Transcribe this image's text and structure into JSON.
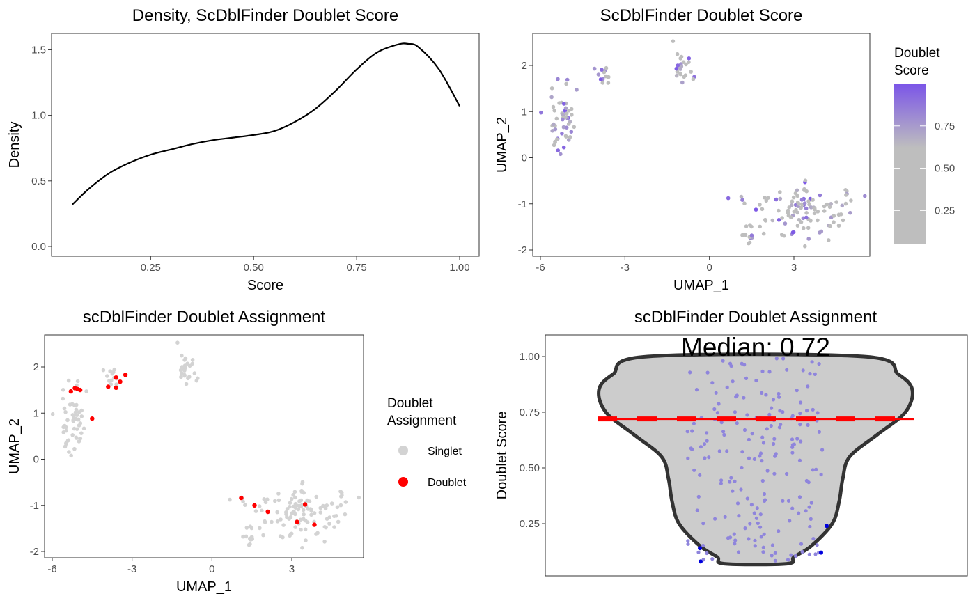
{
  "colors": {
    "score_low": "#bebebe",
    "score_high": "#7b55e8",
    "singlet": "#d3d3d3",
    "doublet": "#ff0000",
    "violin_fill": "#cccccc",
    "violin_outline": "#333333",
    "jitter_point": "#8f85dc",
    "outlier_point": "#0000dd",
    "median_line": "#ff0000"
  },
  "chart_data": [
    {
      "id": "density",
      "type": "line",
      "title": "Density, ScDblFinder Doublet Score",
      "xlabel": "Score",
      "ylabel": "Density",
      "xlim": [
        0.05,
        1.0
      ],
      "ylim": [
        0.0,
        1.55
      ],
      "xticks": [
        0.25,
        0.5,
        0.75,
        1.0
      ],
      "xtick_labels": [
        "0.25",
        "0.50",
        "0.75",
        "1.00"
      ],
      "yticks": [
        0.0,
        0.5,
        1.0,
        1.5
      ],
      "ytick_labels": [
        "0.0",
        "0.5",
        "1.0",
        "1.5"
      ],
      "grid": false,
      "series": [
        {
          "x": [
            0.06,
            0.1,
            0.15,
            0.2,
            0.25,
            0.3,
            0.35,
            0.4,
            0.45,
            0.5,
            0.55,
            0.6,
            0.65,
            0.7,
            0.75,
            0.8,
            0.85,
            0.875,
            0.9,
            0.95,
            1.0
          ],
          "y": [
            0.32,
            0.44,
            0.56,
            0.64,
            0.7,
            0.74,
            0.78,
            0.81,
            0.83,
            0.85,
            0.88,
            0.95,
            1.05,
            1.19,
            1.35,
            1.48,
            1.54,
            1.545,
            1.52,
            1.35,
            1.07
          ]
        }
      ]
    },
    {
      "id": "umap_score",
      "type": "scatter",
      "title": "ScDblFinder Doublet Score",
      "xlabel": "UMAP_1",
      "ylabel": "UMAP_2",
      "xlim": [
        -5.9,
        5.7
      ],
      "ylim": [
        -2.1,
        2.55
      ],
      "xticks": [
        -6,
        -3,
        0,
        3
      ],
      "xtick_labels": [
        "-6",
        "-3",
        "0",
        "3"
      ],
      "yticks": [
        -2,
        -1,
        0,
        1,
        2
      ],
      "ytick_labels": [
        "-2",
        "-1",
        "0",
        "1",
        "2"
      ],
      "legend": {
        "title": "Doublet\nScore",
        "position": "right",
        "type": "colorbar",
        "range": [
          0.05,
          1.0
        ],
        "ticks": [
          0.25,
          0.5,
          0.75
        ],
        "tick_labels": [
          "0.25",
          "0.50",
          "0.75"
        ]
      },
      "clusters": [
        {
          "center": [
            -5.2,
            0.8
          ],
          "spread": [
            0.42,
            0.45
          ],
          "n": 52
        },
        {
          "center": [
            -3.8,
            1.75
          ],
          "spread": [
            0.22,
            0.12
          ],
          "n": 12
        },
        {
          "center": [
            -1.0,
            1.95
          ],
          "spread": [
            0.22,
            0.25
          ],
          "n": 24
        },
        {
          "center": [
            3.3,
            -1.15
          ],
          "spread": [
            1.3,
            0.35
          ],
          "n": 110
        },
        {
          "center": [
            1.35,
            -1.7
          ],
          "spread": [
            0.18,
            0.15
          ],
          "n": 12
        }
      ]
    },
    {
      "id": "umap_assign",
      "type": "scatter",
      "title": "scDblFinder Doublet Assignment",
      "xlabel": "UMAP_1",
      "ylabel": "UMAP_2",
      "xlim": [
        -5.9,
        5.4
      ],
      "ylim": [
        -2.1,
        2.55
      ],
      "xticks": [
        -6,
        -3,
        0,
        3
      ],
      "xtick_labels": [
        "-6",
        "-3",
        "0",
        "3"
      ],
      "yticks": [
        -2,
        -1,
        0,
        1,
        2
      ],
      "ytick_labels": [
        "-2",
        "-1",
        "0",
        "1",
        "2"
      ],
      "legend": {
        "title": "Doublet\nAssignment",
        "position": "right",
        "type": "categorical",
        "items": [
          {
            "label": "Singlet",
            "color": "#d3d3d3"
          },
          {
            "label": "Doublet",
            "color": "#ff0000"
          }
        ]
      },
      "doublets": [
        [
          -5.3,
          1.47
        ],
        [
          -5.15,
          1.54
        ],
        [
          -5.05,
          1.52
        ],
        [
          -4.95,
          1.5
        ],
        [
          -4.5,
          0.88
        ],
        [
          -3.9,
          1.57
        ],
        [
          -3.6,
          1.55
        ],
        [
          -3.6,
          1.77
        ],
        [
          -3.45,
          1.68
        ],
        [
          -3.25,
          1.83
        ],
        [
          1.1,
          -0.84
        ],
        [
          1.6,
          -1.0
        ],
        [
          2.1,
          -1.14
        ],
        [
          3.2,
          -1.36
        ],
        [
          3.5,
          -0.98
        ],
        [
          3.85,
          -1.42
        ]
      ]
    },
    {
      "id": "violin",
      "type": "violin",
      "title": "scDblFinder Doublet Assignment",
      "xlabel": "",
      "ylabel": "Doublet Score",
      "ylim": [
        0.03,
        1.1
      ],
      "yticks": [
        0.25,
        0.5,
        0.75,
        1.0
      ],
      "ytick_labels": [
        "0.25",
        "0.50",
        "0.75",
        "1.00"
      ],
      "median": 0.72,
      "annotation": "Median: 0.72",
      "outliers": [
        0.24,
        0.14,
        0.12,
        0.08
      ],
      "points_n": 190
    }
  ]
}
